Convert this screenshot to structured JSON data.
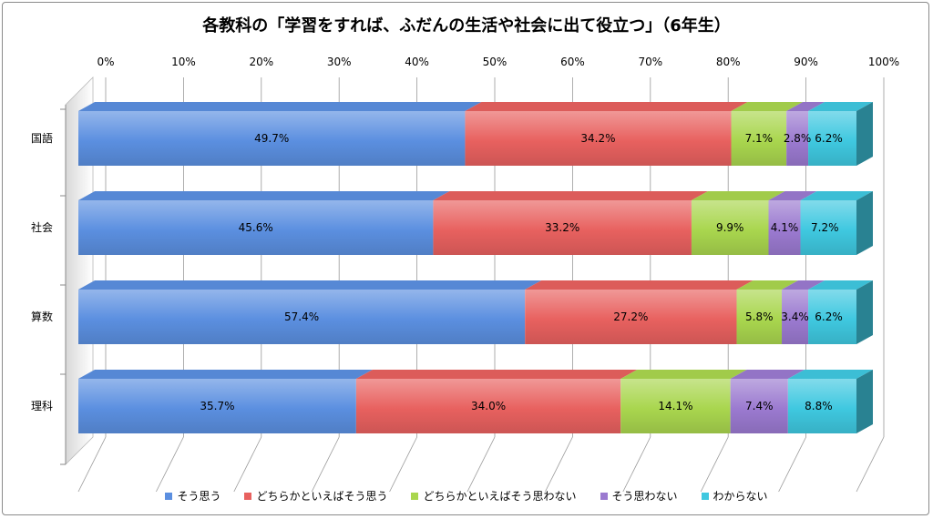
{
  "chart_data": {
    "type": "bar",
    "orientation": "horizontal",
    "stacked": "percent",
    "title": "各教科の「学習をすれば、ふだんの生活や社会に出て役立つ」（6年生）",
    "categories": [
      "国語",
      "社会",
      "算数",
      "理科"
    ],
    "xlim": [
      0,
      100
    ],
    "x_ticks": [
      "0%",
      "10%",
      "20%",
      "30%",
      "40%",
      "50%",
      "60%",
      "70%",
      "80%",
      "90%",
      "100%"
    ],
    "legend_position": "bottom",
    "grid": true,
    "series": [
      {
        "name": "そう思う",
        "color": "#5b8fe0",
        "values": [
          49.7,
          45.6,
          57.4,
          35.7
        ],
        "labels": [
          "49.7%",
          "45.6%",
          "57.4%",
          "35.7%"
        ]
      },
      {
        "name": "どちらかといえばそう思う",
        "color": "#e8615f",
        "values": [
          34.2,
          33.2,
          27.2,
          34.0
        ],
        "labels": [
          "34.2%",
          "33.2%",
          "27.2%",
          "34.0%"
        ]
      },
      {
        "name": "どちらかといえばそう思わない",
        "color": "#a9d64e",
        "values": [
          7.1,
          9.9,
          5.8,
          14.1
        ],
        "labels": [
          "7.1%",
          "9.9%",
          "5.8%",
          "14.1%"
        ]
      },
      {
        "name": "そう思わない",
        "color": "#9b7ad0",
        "values": [
          2.8,
          4.1,
          3.4,
          7.4
        ],
        "labels": [
          "2.8%",
          "4.1%",
          "3.4%",
          "7.4%"
        ]
      },
      {
        "name": "わからない",
        "color": "#3fc8e0",
        "values": [
          6.2,
          7.2,
          6.2,
          8.8
        ],
        "labels": [
          "6.2%",
          "7.2%",
          "6.2%",
          "8.8%"
        ]
      }
    ]
  }
}
